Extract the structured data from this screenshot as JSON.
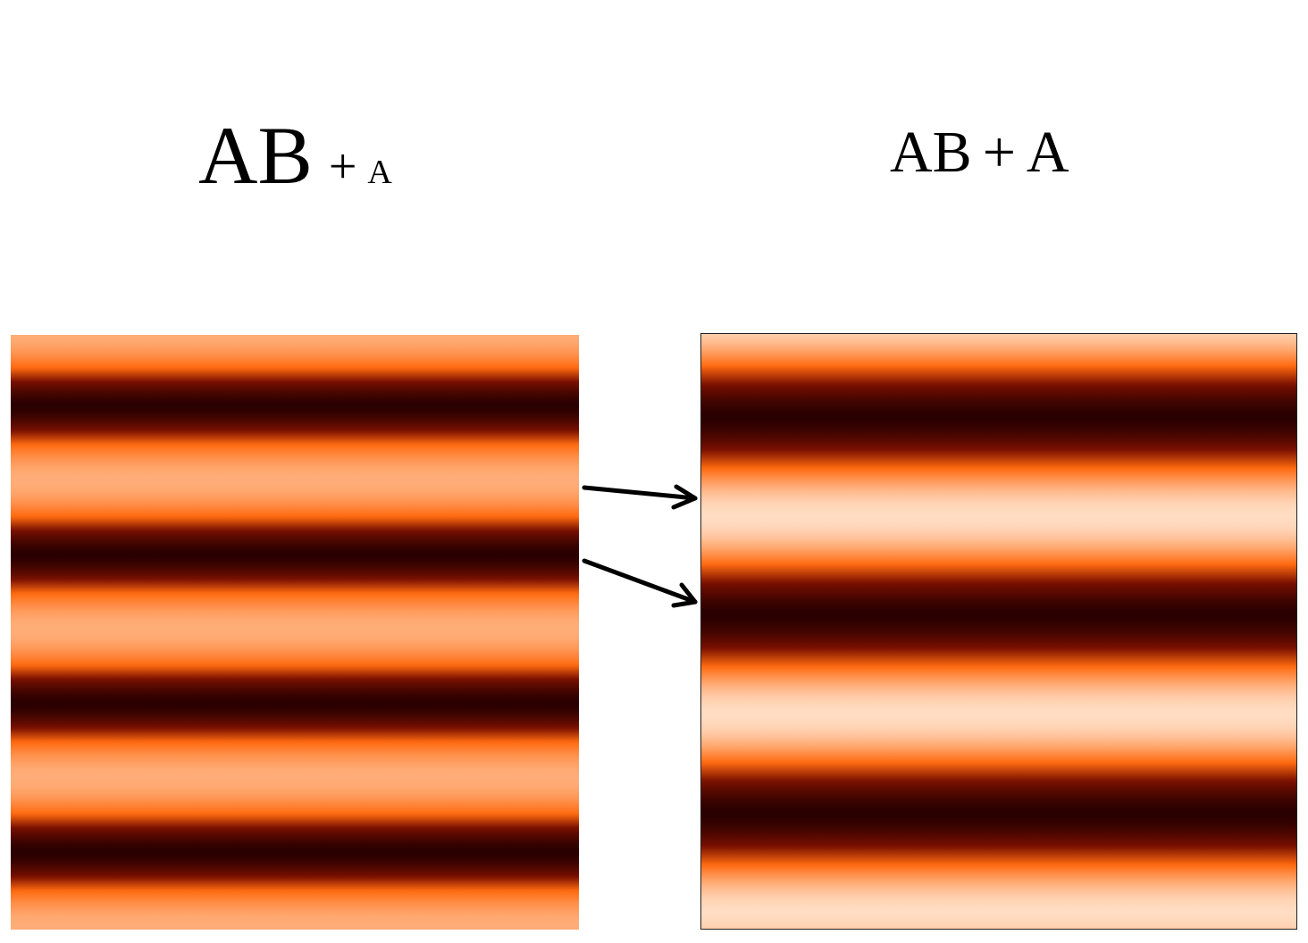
{
  "labels": {
    "left": {
      "main": "AB",
      "plus": "+",
      "sub": "A"
    },
    "right": {
      "main": "AB",
      "plus": "+",
      "sub": "A"
    }
  },
  "panels": {
    "left": {
      "name": "fringe-pattern-left",
      "fringe_periods": 4
    },
    "right": {
      "name": "fringe-pattern-right",
      "fringe_periods": 3
    }
  },
  "colors": {
    "dark": "#2a0000",
    "deep_red": "#7a1000",
    "orange": "#ff6a10",
    "light_left": "#ffad78",
    "light_right": "#ffdcc2"
  },
  "arrows": {
    "count": 2,
    "color": "#000000"
  }
}
